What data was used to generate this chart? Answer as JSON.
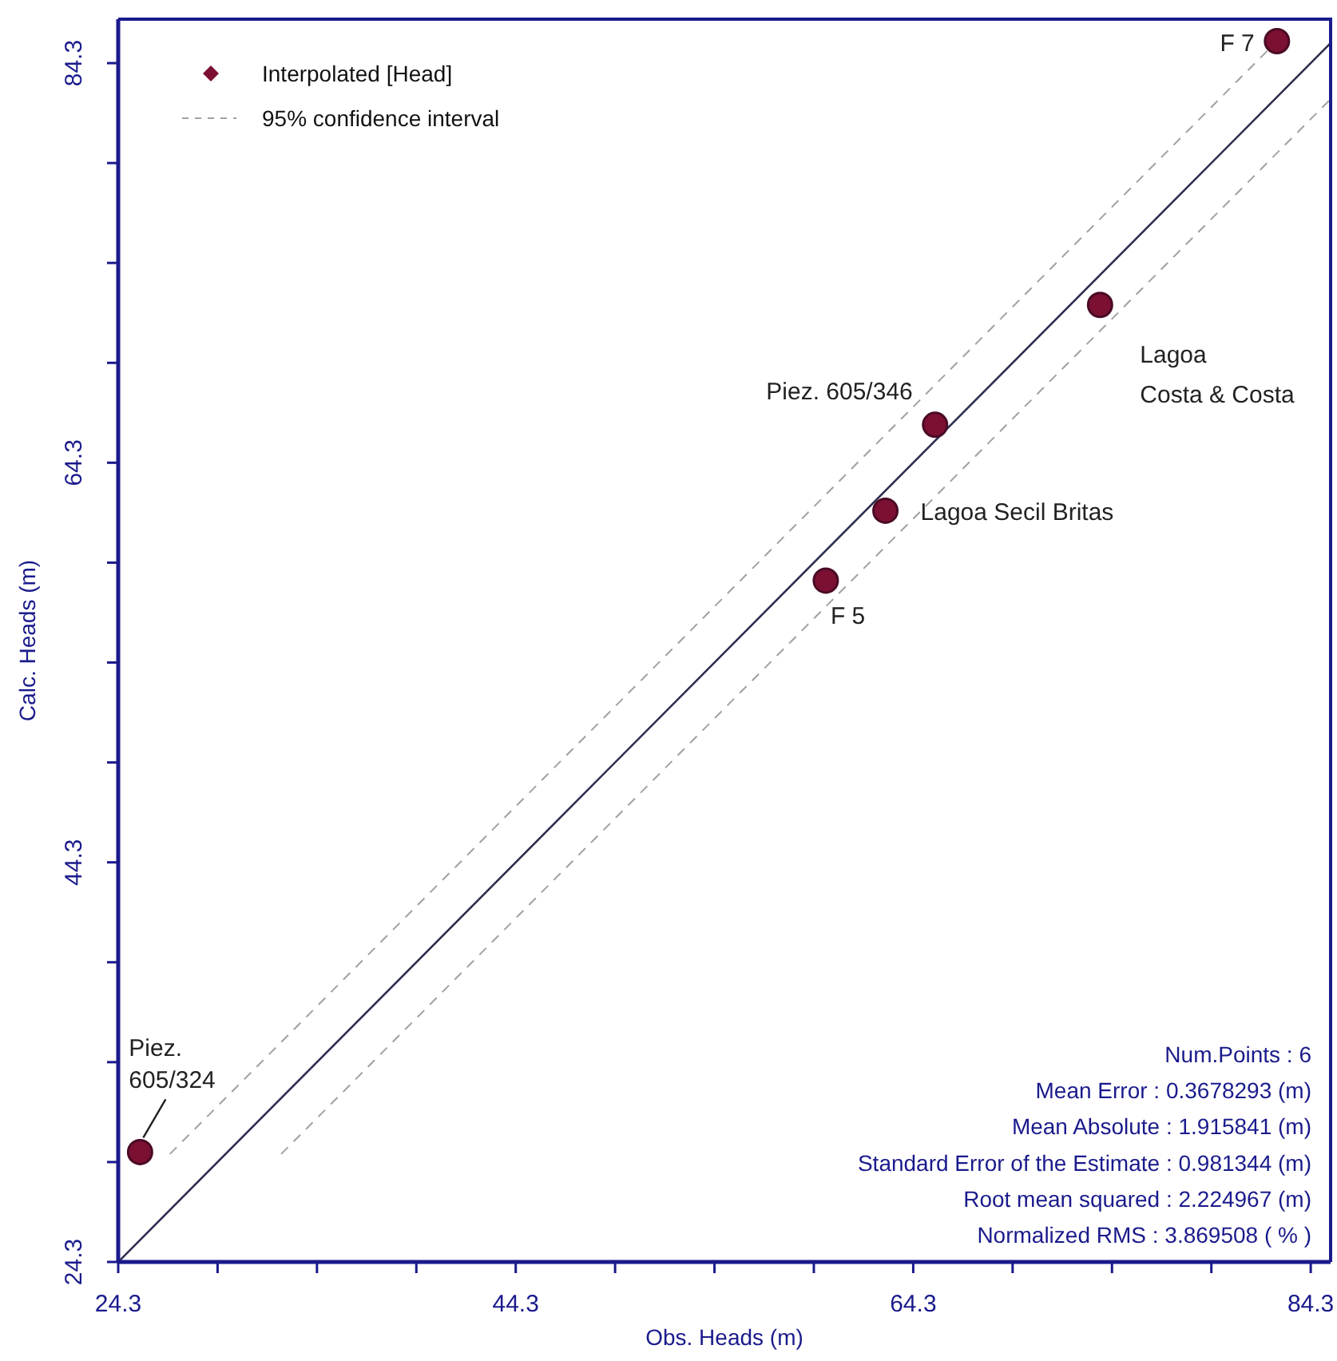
{
  "chart_data": {
    "type": "scatter",
    "xlabel": "Obs. Heads (m)",
    "ylabel": "Calc. Heads (m)",
    "xlim": [
      24.3,
      85.3
    ],
    "ylim": [
      24.3,
      86.5
    ],
    "xticks": [
      24.3,
      {
        "value": 29.3,
        "label": null
      },
      {
        "value": 34.3,
        "label": null
      },
      {
        "value": 39.3,
        "label": null
      },
      44.3,
      {
        "value": 49.3,
        "label": null
      },
      {
        "value": 54.3,
        "label": null
      },
      {
        "value": 59.3,
        "label": null
      },
      64.3,
      {
        "value": 69.3,
        "label": null
      },
      {
        "value": 74.3,
        "label": null
      },
      {
        "value": 79.3,
        "label": null
      },
      84.3
    ],
    "yticks": [
      24.3,
      {
        "value": 29.3,
        "label": null
      },
      {
        "value": 34.3,
        "label": null
      },
      {
        "value": 39.3,
        "label": null
      },
      44.3,
      {
        "value": 49.3,
        "label": null
      },
      {
        "value": 54.3,
        "label": null
      },
      {
        "value": 59.3,
        "label": null
      },
      64.3,
      {
        "value": 69.3,
        "label": null
      },
      {
        "value": 74.3,
        "label": null
      },
      {
        "value": 79.3,
        "label": null
      },
      84.3
    ],
    "grid": false,
    "legend": "top left",
    "marker": "circle",
    "series": [
      {
        "name": "Interpolated [Head]",
        "color": "#7b1032",
        "x": [
          82.6,
          73.7,
          65.4,
          62.9,
          59.9,
          25.4
        ],
        "values": [
          85.4,
          72.2,
          66.2,
          61.9,
          58.4,
          29.8
        ]
      },
      {
        "name": "95% confidence interval",
        "type": "line",
        "marker": "none",
        "line_style": "dashed",
        "color": "#a0a0a0",
        "x": [
          26.9,
          82.5
        ],
        "values": [
          29.7,
          85.3
        ]
      },
      {
        "type": "line",
        "marker": "none",
        "line_style": "dashed",
        "color": "#a0a0a0",
        "x": [
          32.5,
          85.3
        ],
        "values": [
          29.7,
          82.5
        ]
      },
      {
        "type": "line",
        "marker": "none",
        "line_style": "solid",
        "color": "#2e2e50",
        "x": [
          24.3,
          85.3
        ],
        "values": [
          24.3,
          85.3
        ]
      }
    ],
    "annotations": [
      {
        "text": "F 7",
        "x": 82.6,
        "y": 85.4
      },
      {
        "text": "Lagoa Costa & Costa",
        "x": 73.7,
        "y": 72.2
      },
      {
        "text": "Piez. 605/346",
        "x": 65.4,
        "y": 66.2
      },
      {
        "text": "Lagoa Secil Britas",
        "x": 62.9,
        "y": 61.9
      },
      {
        "text": "F 5",
        "x": 59.9,
        "y": 58.4
      },
      {
        "text": "Piez. 605/324",
        "x": 25.4,
        "y": 29.8
      },
      "Num.Points : 6",
      "Mean Error : 0.3678293 (m)",
      "Mean Absolute : 1.915841 (m)",
      "Standard Error of the Estimate : 0.981344 (m)",
      "Root mean squared : 2.224967 (m)",
      "Normalized RMS : 3.869508 ( % )"
    ]
  }
}
